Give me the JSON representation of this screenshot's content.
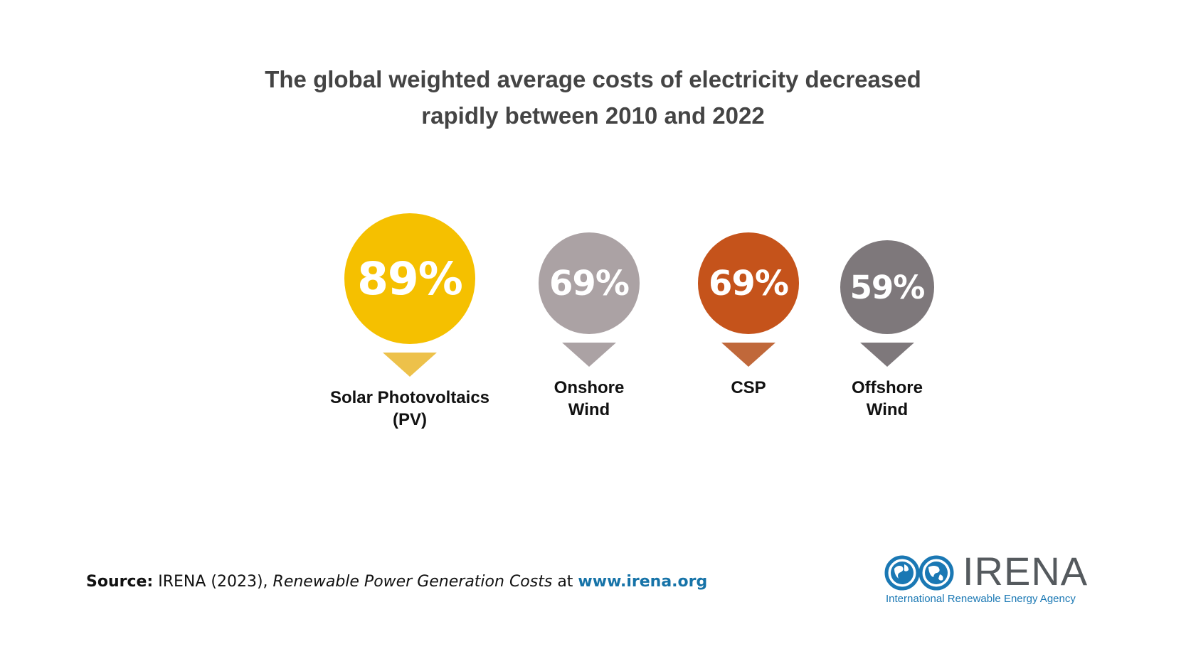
{
  "chart_data": {
    "type": "bubble",
    "title_lines": [
      "The global weighted average costs of electricity decreased",
      "rapidly between 2010 and 2022"
    ],
    "categories": [
      [
        "Solar Photovoltaics",
        "(PV)"
      ],
      [
        "Onshore",
        "Wind"
      ],
      [
        "CSP"
      ],
      [
        "Offshore",
        "Wind"
      ]
    ],
    "values": [
      89,
      69,
      69,
      59
    ],
    "value_labels": [
      "89%",
      "69%",
      "69%",
      "59%"
    ],
    "colors": [
      "#f5c000",
      "#aba2a4",
      "#c5531b",
      "#7e787b"
    ],
    "pointer_colors": [
      "#edc14a",
      "#aba2a4",
      "#c0683a",
      "#7e787b"
    ],
    "unit": "%"
  },
  "source": {
    "key": "Source:",
    "text1": " IRENA (2023), ",
    "publication": "Renewable Power Generation Costs",
    "text2": " at ",
    "url": "www.irena.org"
  },
  "logo": {
    "wordmark": "IRENA",
    "tagline": "International Renewable Energy Agency",
    "icon": "globe-infinity-icon",
    "color": "#1a78b4"
  }
}
